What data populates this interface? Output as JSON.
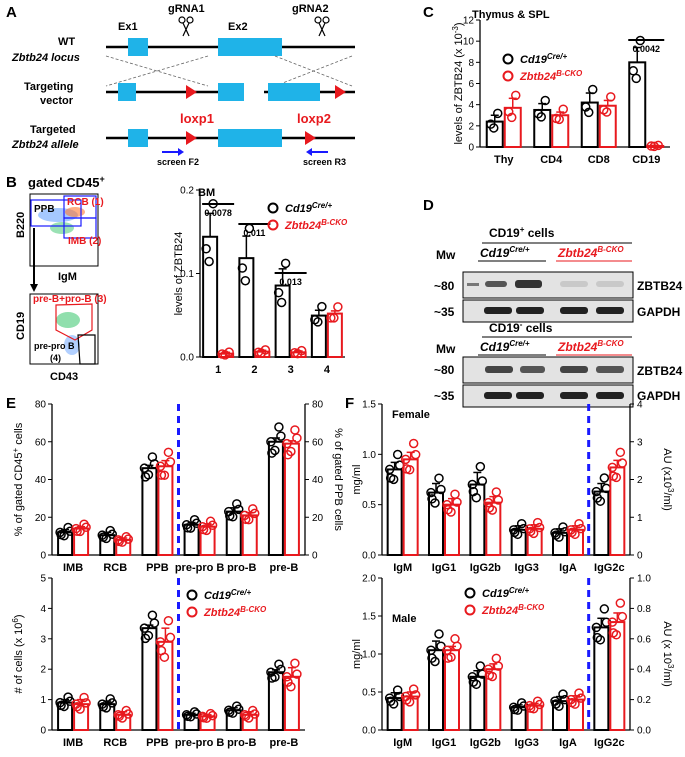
{
  "colors": {
    "black": "#000000",
    "red": "#e8191e",
    "blue": "#1a1aff",
    "cyan": "#1fb3e8",
    "gel": "#d9d9d9"
  },
  "panelA": {
    "label": "A",
    "wt_line1": "WT",
    "wt_line2": "Zbtb24 locus",
    "tv_line1": "Targeting",
    "tv_line2": "vector",
    "ta_line1": "Targeted",
    "ta_line2": "Zbtb24 allele",
    "ex1": "Ex1",
    "ex2": "Ex2",
    "grna1": "gRNA1",
    "grna2": "gRNA2",
    "loxp1": "loxp1",
    "loxp2": "loxp2",
    "screen_f2": "screen F2",
    "screen_r3": "screen R3"
  },
  "panelB": {
    "label": "B",
    "gate_title": "gated CD45",
    "gate_sup": "+",
    "rcb": "RCB (1)",
    "ppb": "PPB",
    "imb": "IMB (2)",
    "b220": "B220",
    "igm": "IgM",
    "preb": "pre-B+pro-B (3)",
    "prepro1": "pre-pro B",
    "prepro2": "(4)",
    "cd19": "CD19",
    "cd43": "CD43"
  },
  "panelC": {
    "label": "C"
  },
  "panelD": {
    "label": "D",
    "cd19pos": "CD19",
    "cd19pos_sup": "+",
    "cd19pos_suffix": " cells",
    "cd19neg": "CD19",
    "cd19neg_sup": "-",
    "cd19neg_suffix": " cells",
    "mw": "Mw",
    "cre_base": "Cd19",
    "cre_sup": "Cre/+",
    "cko_base": "Zbtb24",
    "cko_sup": "B-CKO",
    "mw80": "~80",
    "mw35": "~35",
    "zbtb24": "ZBTB24",
    "gapdh": "GAPDH"
  },
  "panelE": {
    "label": "E"
  },
  "panelF": {
    "label": "F"
  },
  "chart_data": [
    {
      "id": "B",
      "type": "bar",
      "title": "BM",
      "ylabel": "levels of ZBTB24",
      "ylim": [
        0,
        0.25
      ],
      "yticks": [
        "0.0",
        "0.1",
        "0.2"
      ],
      "categories": [
        "1",
        "2",
        "3",
        "4"
      ],
      "legend": {
        "ctrl_base": "Cd19",
        "ctrl_sup": "Cre/+",
        "cko_base": "Zbtb24",
        "cko_sup": "B-CKO"
      },
      "series": [
        {
          "name": "Cd19Cre/+",
          "values": [
            0.18,
            0.148,
            0.107,
            0.062
          ],
          "errors": [
            0.035,
            0.033,
            0.025,
            0.008
          ]
        },
        {
          "name": "Zbtb24B-CKO",
          "values": [
            0.005,
            0.008,
            0.007,
            0.065
          ],
          "errors": [
            0.002,
            0.002,
            0.002,
            0.004
          ]
        }
      ],
      "annotations": [
        {
          "text": "0.0078",
          "cat": 0
        },
        {
          "text": "0.011",
          "cat": 1
        },
        {
          "text": "0.013",
          "cat": 2
        }
      ]
    },
    {
      "id": "C",
      "type": "bar",
      "title": "Thymus & SPL",
      "ylabel": "levels of ZBTB24 (x 10",
      "ylabel_sup": "-3",
      "ylabel_end": ")",
      "ylim": [
        0,
        12
      ],
      "yticks": [
        "0",
        "2",
        "4",
        "6",
        "8",
        "10",
        "12"
      ],
      "categories": [
        "Thy",
        "CD4",
        "CD8",
        "CD19"
      ],
      "legend": {
        "ctrl_base": "Cd19",
        "ctrl_sup": "Cre/+",
        "cko_base": "Zbtb24",
        "cko_sup": "B-CKO"
      },
      "series": [
        {
          "name": "Cd19Cre/+",
          "values": [
            2.4,
            3.5,
            4.2,
            8.0
          ],
          "errors": [
            0.6,
            0.6,
            0.9,
            1.4
          ]
        },
        {
          "name": "Zbtb24B-CKO",
          "values": [
            3.7,
            3.0,
            3.9,
            0.1
          ],
          "errors": [
            0.9,
            0.3,
            0.5,
            0.05
          ]
        }
      ],
      "annotations": [
        {
          "text": "0.0042",
          "cat": 3
        }
      ]
    },
    {
      "id": "E-top",
      "type": "bar",
      "ylabel": "% of gated CD45",
      "ylabel_sup": "+",
      "ylabel_end": " cells",
      "y2label": "% of gated PPB cells",
      "ylim": [
        0,
        80
      ],
      "yticks": [
        "0",
        "20",
        "40",
        "60",
        "80"
      ],
      "categories": [
        "IMB",
        "RCB",
        "PPB",
        "pre-pro B",
        "pro-B",
        "pre-B"
      ],
      "series": [
        {
          "name": "Cd19Cre/+",
          "values": [
            12,
            10.5,
            46,
            16,
            23,
            60
          ],
          "errors": [
            1.5,
            1.5,
            1.5,
            1.2,
            2,
            2
          ]
        },
        {
          "name": "Zbtb24B-CKO",
          "values": [
            14,
            8,
            47,
            15,
            21,
            59
          ],
          "errors": [
            1,
            1,
            3,
            1.5,
            1.5,
            1.5
          ]
        }
      ]
    },
    {
      "id": "E-bottom",
      "type": "bar",
      "ylabel": "# of cells (x 10",
      "ylabel_sup": "6",
      "ylabel_end": ")",
      "ylim": [
        0,
        5
      ],
      "yticks": [
        "0",
        "1",
        "2",
        "3",
        "4",
        "5"
      ],
      "categories": [
        "IMB",
        "RCB",
        "PPB",
        "pre-pro B",
        "pro-B",
        "pre-B"
      ],
      "legend": {
        "ctrl_base": "Cd19",
        "ctrl_sup": "Cre/+",
        "cko_base": "Zbtb24",
        "cko_sup": "B-CKO"
      },
      "series": [
        {
          "name": "Cd19Cre/+",
          "values": [
            0.9,
            0.85,
            3.35,
            0.5,
            0.65,
            1.9
          ],
          "errors": [
            0.1,
            0.1,
            0.1,
            0.05,
            0.08,
            0.08
          ]
        },
        {
          "name": "Zbtb24B-CKO",
          "values": [
            0.85,
            0.5,
            2.9,
            0.45,
            0.5,
            1.75
          ],
          "errors": [
            0.15,
            0.1,
            0.45,
            0.05,
            0.1,
            0.3
          ]
        }
      ]
    },
    {
      "id": "F-top",
      "type": "bar",
      "title": "Female",
      "ylabel": "mg/ml",
      "y2label": "AU (x10",
      "y2label_sup": "3",
      "y2label_end": "/ml)",
      "ylim": [
        0,
        1.5
      ],
      "yticks": [
        "0.0",
        "0.5",
        "1.0",
        "1.5"
      ],
      "y2lim": [
        0,
        4
      ],
      "y2ticks": [
        "0",
        "1",
        "2",
        "3",
        "4"
      ],
      "categories": [
        "IgM",
        "IgG1",
        "IgG2b",
        "IgG3",
        "IgA",
        "IgG2c"
      ],
      "series": [
        {
          "name": "Cd19Cre/+",
          "values": [
            0.85,
            0.62,
            0.7,
            0.25,
            0.22,
            0.63
          ],
          "errors": [
            0.07,
            0.09,
            0.12,
            0.04,
            0.04,
            0.08
          ]
        },
        {
          "name": "Zbtb24B-CKO",
          "values": [
            0.95,
            0.5,
            0.52,
            0.26,
            0.25,
            0.87
          ],
          "errors": [
            0.07,
            0.06,
            0.06,
            0.04,
            0.04,
            0.07
          ]
        }
      ]
    },
    {
      "id": "F-bottom",
      "type": "bar",
      "title": "Male",
      "ylabel": "mg/ml",
      "y2label": "AU (x 10",
      "y2label_sup": "3",
      "y2label_end": "/ml)",
      "ylim": [
        0,
        2.0
      ],
      "yticks": [
        "0.0",
        "0.5",
        "1.0",
        "1.5",
        "2.0"
      ],
      "y2lim": [
        0,
        1.0
      ],
      "y2ticks": [
        "0.0",
        "0.2",
        "0.4",
        "0.6",
        "0.8",
        "1.0"
      ],
      "categories": [
        "IgM",
        "IgG1",
        "IgG2b",
        "IgG3",
        "IgA",
        "IgG2c"
      ],
      "legend": {
        "ctrl_base": "Cd19",
        "ctrl_sup": "Cre/+",
        "cko_base": "Zbtb24",
        "cko_sup": "B-CKO"
      },
      "series": [
        {
          "name": "Cd19Cre/+",
          "values": [
            0.42,
            1.05,
            0.7,
            0.3,
            0.38,
            1.35
          ],
          "errors": [
            0.07,
            0.12,
            0.08,
            0.03,
            0.06,
            0.12
          ]
        },
        {
          "name": "Zbtb24B-CKO",
          "values": [
            0.44,
            1.05,
            0.8,
            0.32,
            0.4,
            1.42
          ],
          "errors": [
            0.06,
            0.05,
            0.07,
            0.03,
            0.05,
            0.12
          ]
        }
      ]
    }
  ]
}
